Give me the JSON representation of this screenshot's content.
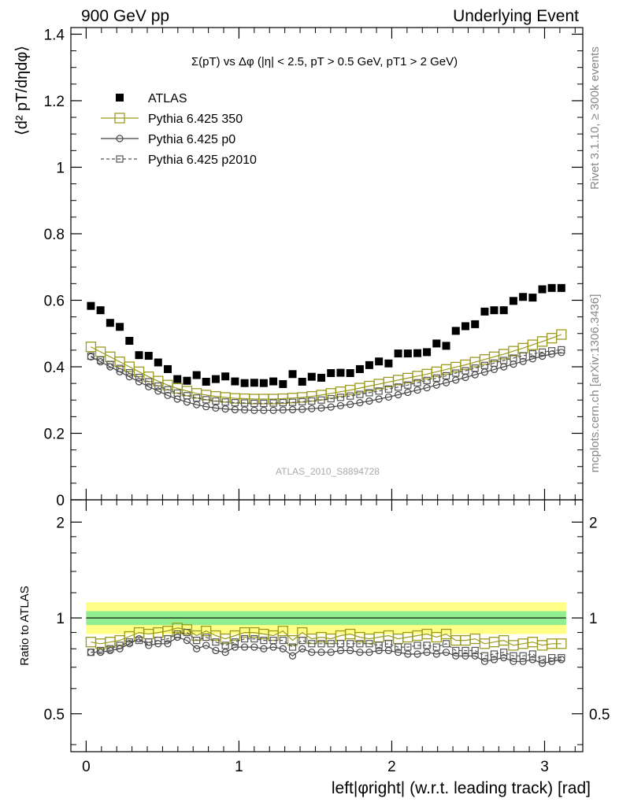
{
  "header": {
    "left": "900 GeV pp",
    "right": "Underlying Event"
  },
  "side": {
    "rivet": "Rivet 3.1.10, ≥ 300k events",
    "mcplots": "mcplots.cern.ch [arXiv:1306.3436]"
  },
  "chart_data": [
    {
      "type": "scatter",
      "title": "Σ(pT) vs Δφ (|η| < 2.5, pT > 0.5 GeV, pT1 > 2 GeV)",
      "ylabel": "⟨d² pT/dηdφ⟩",
      "xlabel": "left|φright| (w.r.t. leading track) [rad]",
      "watermark": "ATLAS_2010_S8894728",
      "xlim": [
        -0.1,
        3.25
      ],
      "ylim": [
        0,
        1.42
      ],
      "yticks": [
        "0",
        "0.2",
        "0.4",
        "0.6",
        "0.8",
        "1",
        "1.2",
        "1.4"
      ],
      "xticks": [
        "0",
        "1",
        "2",
        "3"
      ],
      "legend": "top-left",
      "x": [
        0.031,
        0.094,
        0.157,
        0.22,
        0.283,
        0.346,
        0.409,
        0.471,
        0.534,
        0.597,
        0.66,
        0.723,
        0.785,
        0.848,
        0.911,
        0.974,
        1.037,
        1.1,
        1.162,
        1.225,
        1.288,
        1.351,
        1.414,
        1.476,
        1.539,
        1.602,
        1.665,
        1.728,
        1.791,
        1.853,
        1.916,
        1.979,
        2.042,
        2.105,
        2.168,
        2.23,
        2.293,
        2.356,
        2.419,
        2.482,
        2.545,
        2.608,
        2.67,
        2.733,
        2.796,
        2.859,
        2.922,
        2.985,
        3.047,
        3.11
      ],
      "series": [
        {
          "name": "ATLAS",
          "marker": "filled-square",
          "color": "#000000",
          "values": [
            0.583,
            0.57,
            0.532,
            0.52,
            0.478,
            0.435,
            0.433,
            0.413,
            0.393,
            0.363,
            0.358,
            0.375,
            0.355,
            0.363,
            0.371,
            0.356,
            0.351,
            0.352,
            0.351,
            0.356,
            0.348,
            0.378,
            0.355,
            0.37,
            0.367,
            0.381,
            0.382,
            0.381,
            0.393,
            0.405,
            0.416,
            0.41,
            0.44,
            0.44,
            0.441,
            0.444,
            0.47,
            0.463,
            0.508,
            0.522,
            0.528,
            0.566,
            0.57,
            0.57,
            0.598,
            0.61,
            0.608,
            0.633,
            0.637,
            0.637
          ]
        },
        {
          "name": "Pythia 6.425 350",
          "marker": "open-square",
          "color": "#9a9a1e",
          "values": [
            0.46,
            0.445,
            0.43,
            0.415,
            0.4,
            0.385,
            0.37,
            0.357,
            0.345,
            0.335,
            0.327,
            0.32,
            0.315,
            0.311,
            0.308,
            0.305,
            0.304,
            0.303,
            0.303,
            0.303,
            0.304,
            0.306,
            0.308,
            0.311,
            0.315,
            0.32,
            0.325,
            0.33,
            0.336,
            0.342,
            0.348,
            0.354,
            0.36,
            0.366,
            0.372,
            0.378,
            0.385,
            0.392,
            0.399,
            0.406,
            0.414,
            0.422,
            0.43,
            0.438,
            0.447,
            0.456,
            0.466,
            0.476,
            0.486,
            0.497
          ]
        },
        {
          "name": "Pythia 6.425 p0",
          "marker": "open-circle",
          "color": "#444444",
          "values": [
            0.43,
            0.415,
            0.4,
            0.385,
            0.37,
            0.355,
            0.34,
            0.327,
            0.314,
            0.303,
            0.294,
            0.286,
            0.28,
            0.276,
            0.273,
            0.271,
            0.27,
            0.269,
            0.269,
            0.269,
            0.27,
            0.271,
            0.272,
            0.274,
            0.276,
            0.279,
            0.283,
            0.287,
            0.292,
            0.297,
            0.303,
            0.309,
            0.316,
            0.323,
            0.33,
            0.337,
            0.345,
            0.352,
            0.36,
            0.368,
            0.376,
            0.384,
            0.392,
            0.4,
            0.408,
            0.416,
            0.424,
            0.432,
            0.438,
            0.443
          ]
        },
        {
          "name": "Pythia 6.425 p2010",
          "marker": "open-square-dashed",
          "color": "#555555",
          "values": [
            0.432,
            0.42,
            0.407,
            0.395,
            0.382,
            0.368,
            0.355,
            0.342,
            0.331,
            0.321,
            0.313,
            0.306,
            0.301,
            0.297,
            0.294,
            0.292,
            0.291,
            0.29,
            0.29,
            0.291,
            0.292,
            0.293,
            0.295,
            0.297,
            0.3,
            0.304,
            0.308,
            0.312,
            0.317,
            0.322,
            0.327,
            0.333,
            0.339,
            0.345,
            0.352,
            0.359,
            0.366,
            0.373,
            0.381,
            0.388,
            0.396,
            0.404,
            0.411,
            0.419,
            0.426,
            0.433,
            0.439,
            0.444,
            0.448,
            0.451
          ]
        }
      ]
    },
    {
      "type": "scatter",
      "ylabel": "Ratio to ATLAS",
      "xlabel": "left|φright| (w.r.t. leading track) [rad]",
      "ylim": [
        0.38,
        2.35
      ],
      "yscale": "log",
      "yticks": [
        "0.5",
        "1",
        "2"
      ],
      "xticks": [
        "0",
        "1",
        "2",
        "3"
      ],
      "band_inner": [
        0.95,
        1.05
      ],
      "band_outer": [
        0.89,
        1.12
      ],
      "x": [
        0.031,
        0.094,
        0.157,
        0.22,
        0.283,
        0.346,
        0.409,
        0.471,
        0.534,
        0.597,
        0.66,
        0.723,
        0.785,
        0.848,
        0.911,
        0.974,
        1.037,
        1.1,
        1.162,
        1.225,
        1.288,
        1.351,
        1.414,
        1.476,
        1.539,
        1.602,
        1.665,
        1.728,
        1.791,
        1.853,
        1.916,
        1.979,
        2.042,
        2.105,
        2.168,
        2.23,
        2.293,
        2.356,
        2.419,
        2.482,
        2.545,
        2.608,
        2.67,
        2.733,
        2.796,
        2.859,
        2.922,
        2.985,
        3.047,
        3.11
      ],
      "series": [
        {
          "name": "Pythia 6.425 350",
          "marker": "open-square",
          "color": "#9a9a1e",
          "values": [
            0.84,
            0.83,
            0.84,
            0.85,
            0.875,
            0.9,
            0.89,
            0.9,
            0.91,
            0.93,
            0.92,
            0.88,
            0.91,
            0.88,
            0.86,
            0.88,
            0.9,
            0.9,
            0.89,
            0.88,
            0.91,
            0.85,
            0.9,
            0.86,
            0.87,
            0.86,
            0.88,
            0.89,
            0.87,
            0.86,
            0.87,
            0.88,
            0.86,
            0.87,
            0.88,
            0.89,
            0.87,
            0.89,
            0.85,
            0.85,
            0.86,
            0.83,
            0.84,
            0.85,
            0.82,
            0.83,
            0.84,
            0.82,
            0.83,
            0.83
          ]
        },
        {
          "name": "Pythia 6.425 p0",
          "marker": "open-circle",
          "color": "#444444",
          "values": [
            0.78,
            0.78,
            0.79,
            0.8,
            0.83,
            0.86,
            0.82,
            0.83,
            0.83,
            0.87,
            0.85,
            0.8,
            0.82,
            0.79,
            0.78,
            0.81,
            0.81,
            0.81,
            0.8,
            0.81,
            0.8,
            0.76,
            0.8,
            0.78,
            0.78,
            0.78,
            0.79,
            0.79,
            0.78,
            0.78,
            0.79,
            0.79,
            0.78,
            0.77,
            0.77,
            0.78,
            0.77,
            0.78,
            0.76,
            0.76,
            0.76,
            0.73,
            0.74,
            0.75,
            0.73,
            0.73,
            0.74,
            0.72,
            0.73,
            0.74
          ]
        },
        {
          "name": "Pythia 6.425 p2010",
          "marker": "open-square-dashed",
          "color": "#555555",
          "values": [
            0.78,
            0.79,
            0.8,
            0.82,
            0.84,
            0.85,
            0.84,
            0.85,
            0.86,
            0.89,
            0.9,
            0.85,
            0.87,
            0.84,
            0.82,
            0.84,
            0.86,
            0.86,
            0.85,
            0.85,
            0.85,
            0.81,
            0.85,
            0.83,
            0.83,
            0.83,
            0.83,
            0.83,
            0.83,
            0.83,
            0.82,
            0.83,
            0.81,
            0.81,
            0.82,
            0.82,
            0.81,
            0.83,
            0.79,
            0.79,
            0.79,
            0.76,
            0.77,
            0.78,
            0.76,
            0.76,
            0.77,
            0.74,
            0.75,
            0.75
          ]
        }
      ]
    }
  ]
}
